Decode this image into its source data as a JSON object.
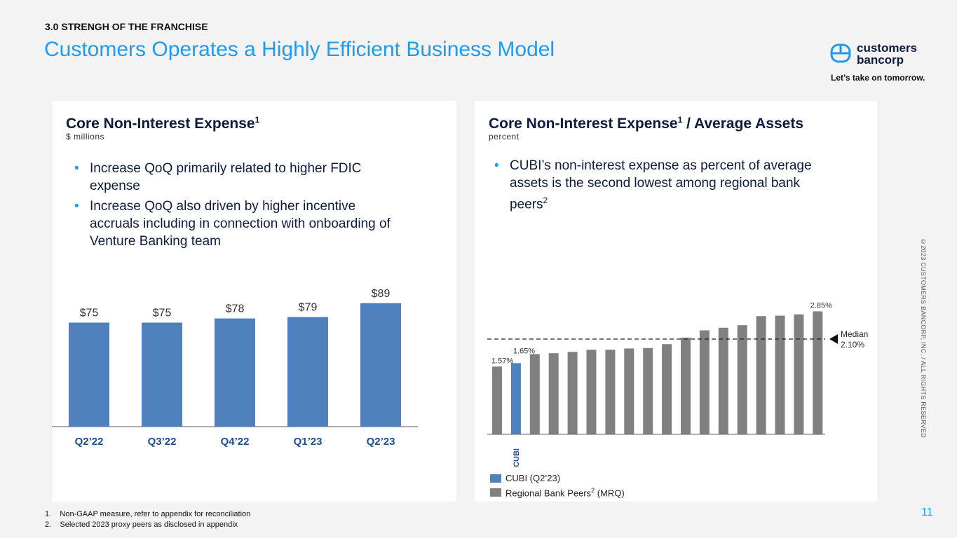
{
  "section": "3.0 STRENGH OF THE FRANCHISE",
  "title": "Customers Operates a Highly Efficient Business Model",
  "logo": {
    "line1": "customers",
    "line2": "bancorp",
    "tagline": "Let’s take on tomorrow."
  },
  "copyright": "©2023 CUSTOMERS BANCORP, INC. / ALL RIGHTS RESERVED",
  "page_number": "11",
  "footnotes": [
    "1.    Non-GAAP measure, refer to appendix for reconciliation",
    "2.    Selected 2023 proxy peers as disclosed in appendix"
  ],
  "left_panel": {
    "heading": "Core Non-Interest Expense",
    "sup": "1",
    "subtitle": "$ millions",
    "bullets": [
      "Increase QoQ primarily related to higher FDIC expense",
      "Increase QoQ also driven by higher incentive accruals including in connection with onboarding of Venture Banking team"
    ]
  },
  "right_panel": {
    "heading_a": "Core Non-Interest Expense",
    "sup": "1",
    "heading_b": " / Average Assets",
    "subtitle": "percent",
    "bullet_text": "CUBI’s non-interest expense as percent of average assets is the second lowest among regional bank peers",
    "bullet_sup": "2",
    "legend": [
      {
        "label": "CUBI (Q2’23)",
        "color": "#4f81bd"
      },
      {
        "label": "Regional Bank Peers",
        "sup": "2",
        "suffix": " (MRQ)",
        "color": "#808080"
      }
    ]
  },
  "chart_data": [
    {
      "type": "bar",
      "title": "Core Non-Interest Expense",
      "ylabel": "$ millions",
      "categories": [
        "Q2’22",
        "Q3’22",
        "Q4’22",
        "Q1’23",
        "Q2’23"
      ],
      "values": [
        75,
        75,
        78,
        79,
        89
      ],
      "labels": [
        "$75",
        "$75",
        "$78",
        "$79",
        "$89"
      ],
      "color": "#4f81bd",
      "ylim": [
        0,
        100
      ]
    },
    {
      "type": "bar",
      "title": "Core Non-Interest Expense / Average Assets",
      "ylabel": "percent",
      "highlight_label": "CUBI",
      "highlight_index": 1,
      "values": [
        1.57,
        1.65,
        1.86,
        1.88,
        1.91,
        1.96,
        1.96,
        1.99,
        2.0,
        2.09,
        2.24,
        2.41,
        2.47,
        2.53,
        2.74,
        2.75,
        2.78,
        2.85
      ],
      "value_labels": {
        "0": "1.57%",
        "1": "1.65%",
        "17": "2.85%"
      },
      "median": {
        "label": "Median",
        "value_label": "2.10%",
        "value": 2.1
      },
      "colors": {
        "peer": "#808080",
        "cubi": "#4f81bd"
      },
      "ylim": [
        0,
        3
      ]
    }
  ]
}
